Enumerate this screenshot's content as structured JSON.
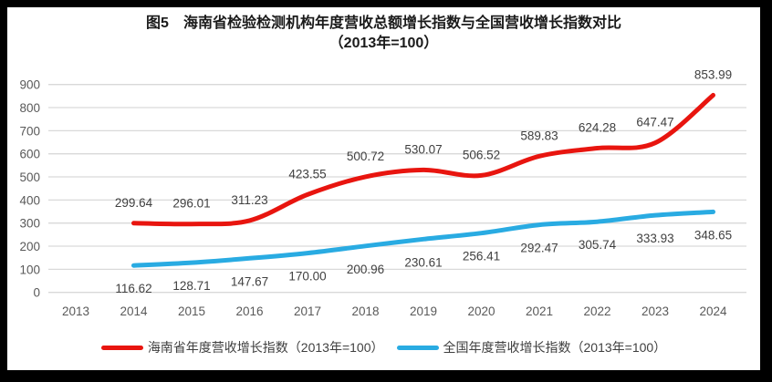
{
  "title": {
    "line1": "图5　海南省检验检测机构年度营收总额增长指数与全国营收增长指数对比",
    "line2": "（2013年=100）"
  },
  "colors": {
    "hainan_line": "#e8150f",
    "national_line": "#29abe2",
    "gridline": "#d9d9d9",
    "tick_text": "#595959",
    "data_label_text": "#404040",
    "frame_background": "#000000",
    "panel_background": "#ffffff"
  },
  "chart_data": {
    "type": "line",
    "title": "图5 海南省检验检测机构年度营收总额增长指数与全国营收增长指数对比（2013年=100）",
    "categories": [
      "2013",
      "2014",
      "2015",
      "2016",
      "2017",
      "2018",
      "2019",
      "2020",
      "2021",
      "2022",
      "2023",
      "2024"
    ],
    "ylim": [
      0,
      900
    ],
    "ytick_step": 100,
    "yticks": [
      "0",
      "100",
      "200",
      "300",
      "400",
      "500",
      "600",
      "700",
      "800",
      "900"
    ],
    "grid": true,
    "legend_position": "bottom",
    "line_style": "smoothed",
    "series": [
      {
        "name": "海南省年度营收增长指数（2013年=100）",
        "color": "#e8150f",
        "start_index": 1,
        "values": [
          299.64,
          296.01,
          311.23,
          423.55,
          500.72,
          530.07,
          506.52,
          589.83,
          624.28,
          647.47,
          853.99
        ],
        "labels": [
          "299.64",
          "296.01",
          "311.23",
          "423.55",
          "500.72",
          "530.07",
          "506.52",
          "589.83",
          "624.28",
          "647.47",
          "853.99"
        ],
        "label_position": "above"
      },
      {
        "name": "全国年度营收增长指数（2013年=100）",
        "color": "#29abe2",
        "start_index": 1,
        "values": [
          116.62,
          128.71,
          147.67,
          170.0,
          200.96,
          230.61,
          256.41,
          292.47,
          305.74,
          333.93,
          348.65
        ],
        "labels": [
          "116.62",
          "128.71",
          "147.67",
          "170.00",
          "200.96",
          "230.61",
          "256.41",
          "292.47",
          "305.74",
          "333.93",
          "348.65"
        ],
        "label_position": "below"
      }
    ]
  }
}
